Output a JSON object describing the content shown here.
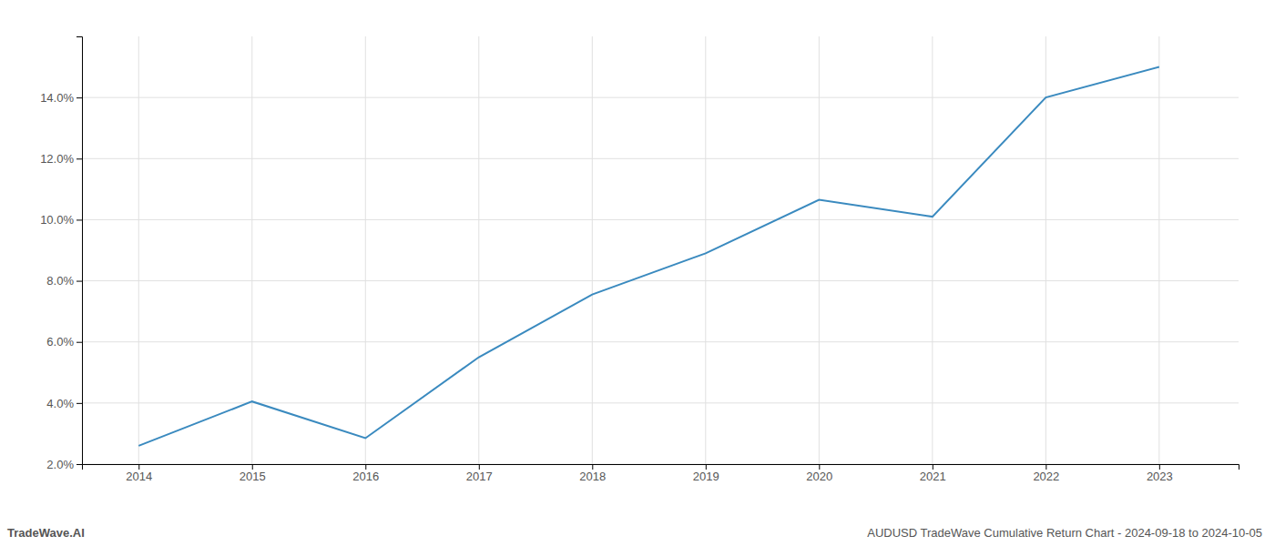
{
  "chart_data": {
    "type": "line",
    "title": "AUDUSD TradeWave Cumulative Return Chart - 2024-09-18 to 2024-10-05",
    "annotations": [
      "TradeWave.AI"
    ],
    "x": [
      2014,
      2015,
      2016,
      2017,
      2018,
      2019,
      2020,
      2021,
      2022,
      2023
    ],
    "values": [
      2.6,
      4.05,
      2.85,
      5.5,
      7.55,
      8.9,
      10.65,
      10.1,
      14.0,
      15.0
    ],
    "color": "#3a8abf",
    "xlim": [
      2013.5,
      2023.7
    ],
    "xticks": [
      2014,
      2015,
      2016,
      2017,
      2018,
      2019,
      2020,
      2021,
      2022,
      2023
    ],
    "ylim": [
      2.0,
      16.0
    ],
    "yticks": [
      {
        "value": 2.0,
        "label": "2.0%"
      },
      {
        "value": 4.0,
        "label": "4.0%"
      },
      {
        "value": 6.0,
        "label": "6.0%"
      },
      {
        "value": 8.0,
        "label": "8.0%"
      },
      {
        "value": 10.0,
        "label": "10.0%"
      },
      {
        "value": 12.0,
        "label": "12.0%"
      },
      {
        "value": 14.0,
        "label": "14.0%"
      }
    ],
    "grid": true
  }
}
